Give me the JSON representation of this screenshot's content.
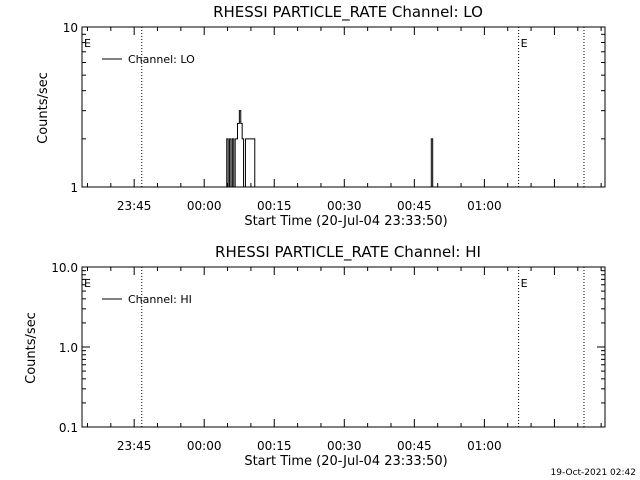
{
  "footer_timestamp": "19-Oct-2021 02:42",
  "chart_data": [
    {
      "type": "line",
      "title": "RHESSI PARTICLE_RATE Channel: LO",
      "xlabel": "Start Time (20-Jul-04 23:33:50)",
      "ylabel": "Counts/sec",
      "yscale": "log",
      "ylim": [
        1,
        10
      ],
      "y_tick_labels": [
        "1",
        "10"
      ],
      "x_ticks": [
        {
          "label": "23:45",
          "minute": 11.17
        },
        {
          "label": "00:00",
          "minute": 26.17
        },
        {
          "label": "00:15",
          "minute": 41.17
        },
        {
          "label": "00:30",
          "minute": 56.17
        },
        {
          "label": "00:45",
          "minute": 71.17
        },
        {
          "label": "01:00",
          "minute": 86.17
        }
      ],
      "x_range_minutes": [
        0,
        112
      ],
      "legend": {
        "label": "Channel: LO",
        "placement": "top-left"
      },
      "eclipse_marker": "E",
      "event_lines_minutes": [
        12.8,
        93.5,
        107.5
      ],
      "eclipse_marker_minutes": [
        0,
        93.5
      ],
      "series": [
        {
          "name": "Channel: LO",
          "points": [
            [
              0,
              1
            ],
            [
              30.8,
              1
            ],
            [
              31.0,
              2
            ],
            [
              31.3,
              1
            ],
            [
              31.6,
              2
            ],
            [
              31.9,
              1
            ],
            [
              32.2,
              2
            ],
            [
              32.5,
              1
            ],
            [
              32.8,
              2
            ],
            [
              33.3,
              2.5
            ],
            [
              33.7,
              3
            ],
            [
              34.0,
              2.5
            ],
            [
              34.3,
              2
            ],
            [
              34.6,
              1
            ],
            [
              35.0,
              2
            ],
            [
              36.5,
              2
            ],
            [
              37.0,
              1
            ],
            [
              74.5,
              1
            ],
            [
              74.8,
              2
            ],
            [
              75.1,
              1
            ],
            [
              112,
              1
            ]
          ]
        }
      ]
    },
    {
      "type": "line",
      "title": "RHESSI PARTICLE_RATE Channel: HI",
      "xlabel": "Start Time (20-Jul-04 23:33:50)",
      "ylabel": "Counts/sec",
      "yscale": "log",
      "ylim": [
        0.1,
        10
      ],
      "y_tick_labels": [
        "0.1",
        "1.0",
        "10.0"
      ],
      "x_ticks": [
        {
          "label": "23:45",
          "minute": 11.17
        },
        {
          "label": "00:00",
          "minute": 26.17
        },
        {
          "label": "00:15",
          "minute": 41.17
        },
        {
          "label": "00:30",
          "minute": 56.17
        },
        {
          "label": "00:45",
          "minute": 71.17
        },
        {
          "label": "01:00",
          "minute": 86.17
        }
      ],
      "x_range_minutes": [
        0,
        112
      ],
      "legend": {
        "label": "Channel: HI",
        "placement": "top-left"
      },
      "eclipse_marker": "E",
      "event_lines_minutes": [
        12.8,
        93.5,
        107.5
      ],
      "eclipse_marker_minutes": [
        0,
        93.5
      ],
      "series": [
        {
          "name": "Channel: HI",
          "points": []
        }
      ]
    }
  ]
}
